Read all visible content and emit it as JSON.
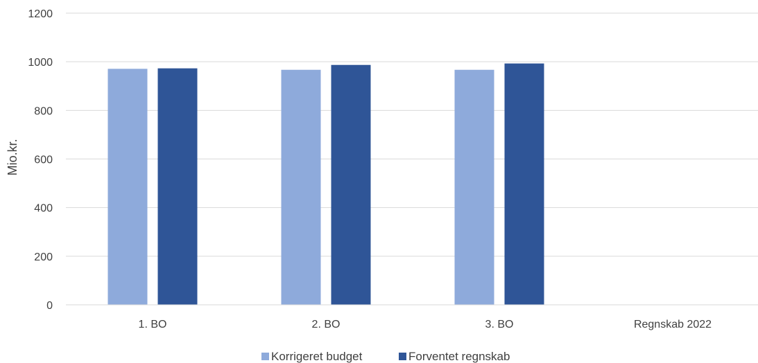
{
  "chart_data": {
    "type": "bar",
    "title": "",
    "xlabel": "",
    "ylabel": "Mio.kr.",
    "ylim": [
      0,
      1200
    ],
    "yticks": [
      0,
      200,
      400,
      600,
      800,
      1000,
      1200
    ],
    "grid": true,
    "legend_position": "bottom",
    "categories": [
      "1. BO",
      "2. BO",
      "3. BO",
      "Regnskab 2022"
    ],
    "series": [
      {
        "name": "Korrigeret budget",
        "color": "#8eaadb",
        "values": [
          971,
          967,
          967,
          null
        ]
      },
      {
        "name": "Forventet regnskab",
        "color": "#2f5597",
        "values": [
          973,
          987,
          993,
          null
        ]
      }
    ]
  }
}
